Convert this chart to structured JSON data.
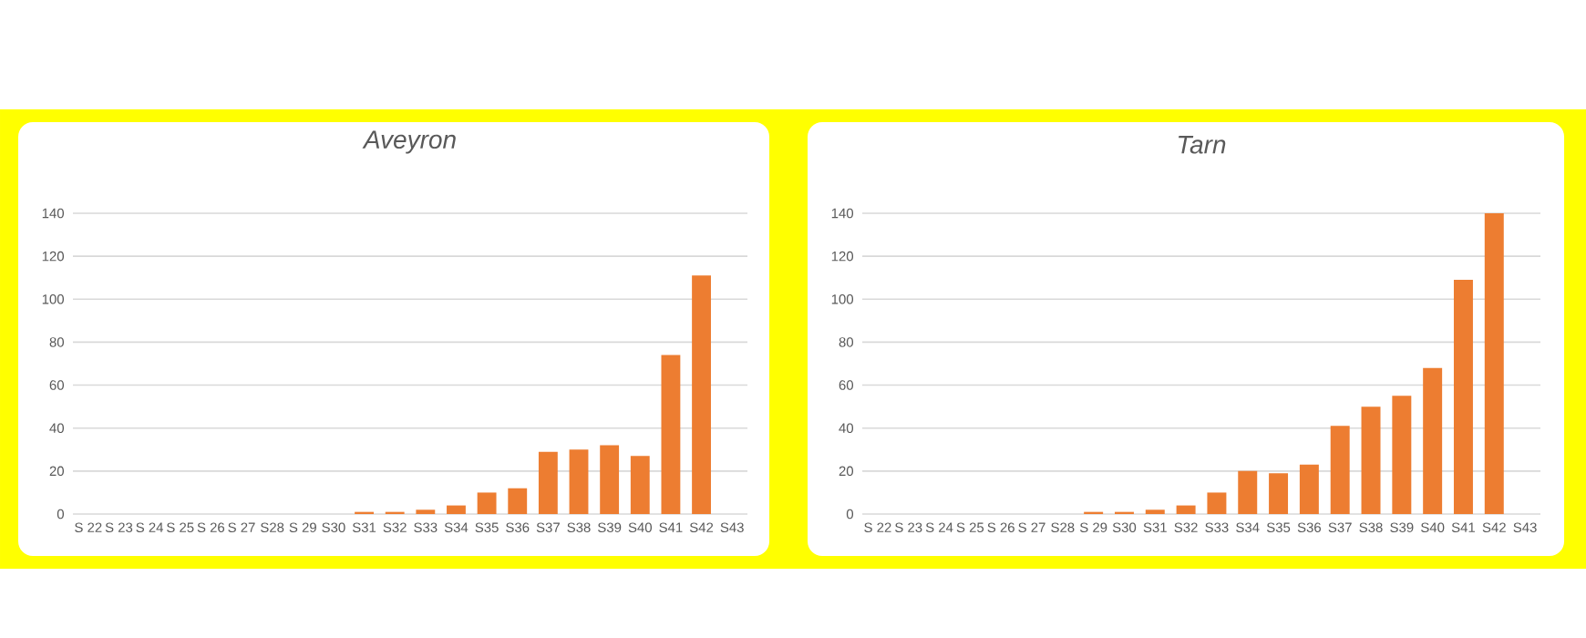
{
  "chart_data": [
    {
      "type": "bar",
      "title": "Aveyron",
      "categories": [
        "S 22",
        "S 23",
        "S 24",
        "S 25",
        "S 26",
        "S 27",
        "S28",
        "S 29",
        "S30",
        "S31",
        "S32",
        "S33",
        "S34",
        "S35",
        "S36",
        "S37",
        "S38",
        "S39",
        "S40",
        "S41",
        "S42",
        "S43"
      ],
      "values": [
        0,
        0,
        0,
        0,
        0,
        0,
        0,
        0,
        0,
        1,
        1,
        2,
        4,
        10,
        12,
        29,
        30,
        32,
        27,
        74,
        111,
        0
      ],
      "color": "#ed7d31",
      "ylim": [
        0,
        140
      ],
      "yticks": [
        0,
        20,
        40,
        60,
        80,
        100,
        120,
        140
      ],
      "grid": "y"
    },
    {
      "type": "bar",
      "title": "Tarn",
      "categories": [
        "S 22",
        "S 23",
        "S 24",
        "S 25",
        "S 26",
        "S 27",
        "S28",
        "S 29",
        "S30",
        "S31",
        "S32",
        "S33",
        "S34",
        "S35",
        "S36",
        "S37",
        "S38",
        "S39",
        "S40",
        "S41",
        "S42",
        "S43"
      ],
      "values": [
        0,
        0,
        0,
        0,
        0,
        0,
        0,
        1,
        1,
        2,
        4,
        10,
        20,
        19,
        23,
        41,
        50,
        55,
        68,
        109,
        140,
        0
      ],
      "color": "#ed7d31",
      "ylim": [
        0,
        140
      ],
      "yticks": [
        0,
        20,
        40,
        60,
        80,
        100,
        120,
        140
      ],
      "grid": "y"
    }
  ]
}
